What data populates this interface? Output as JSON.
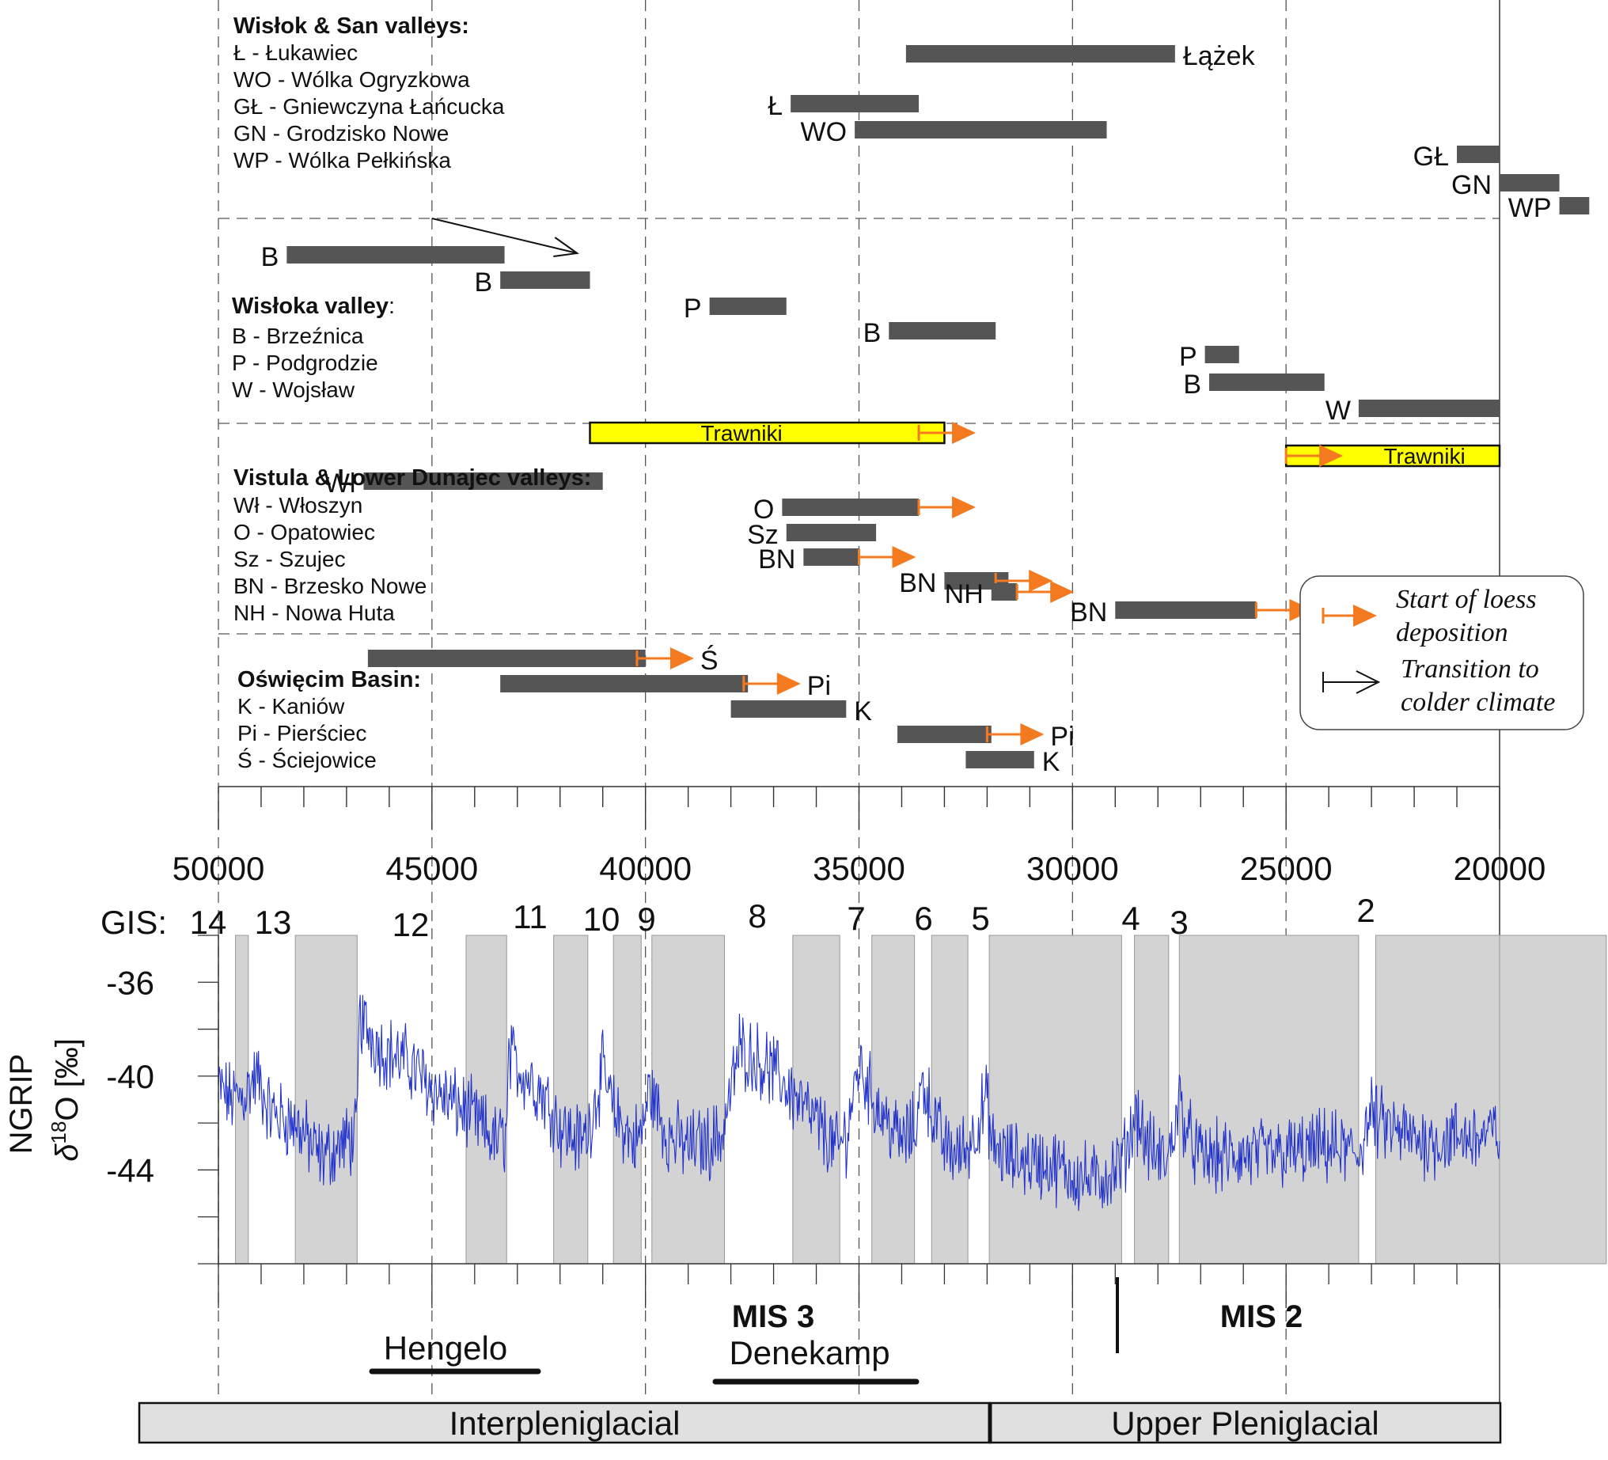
{
  "chart_data": [
    {
      "type": "range_bars",
      "x_axis": {
        "range": [
          50000,
          20000
        ],
        "major_ticks": [
          50000,
          45000,
          40000,
          35000,
          30000,
          25000,
          20000
        ],
        "major_tick_labels": [
          "50000",
          "45000",
          "40000",
          "35000",
          "30000",
          "25000",
          "20000"
        ],
        "minor_step": 1000,
        "units": "years",
        "reversed": true
      },
      "grid": "dashed vertical at 5000-year intervals, dashed horizontal panel dividers",
      "panels": [
        {
          "title": "Wisłok & San valleys:",
          "key": [
            "Ł - Łukawiec",
            "WO - Wólka Ogryzkowa",
            "GŁ - Gniewczyna Łańcucka",
            "GN - Grodzisko Nowe",
            "WP - Wólka Pełkińska"
          ],
          "bars": [
            {
              "label": "Łążek",
              "from": 33900,
              "to": 27600,
              "label_side": "right"
            },
            {
              "label": "Ł",
              "from": 36600,
              "to": 33600,
              "label_side": "left"
            },
            {
              "label": "WO",
              "from": 35100,
              "to": 29200,
              "label_side": "left"
            },
            {
              "label": "GŁ",
              "from": 21000,
              "to": 20000,
              "label_side": "left"
            },
            {
              "label": "GN",
              "from": 20000,
              "to": 18600,
              "label_side": "left"
            },
            {
              "label": "WP",
              "from": 18600,
              "to": 17900,
              "label_side": "left"
            }
          ]
        },
        {
          "title": "Wisłoka valley",
          "title_suffix": ":",
          "key": [
            "B - Brzeźnica",
            "P - Podgrodzie",
            "W - Wojsław"
          ],
          "bars": [
            {
              "label": "B",
              "from": 48400,
              "to": 43300,
              "label_side": "left"
            },
            {
              "label": "B",
              "from": 43400,
              "to": 41300,
              "label_side": "left"
            },
            {
              "label": "P",
              "from": 38500,
              "to": 36700,
              "label_side": "left"
            },
            {
              "label": "B",
              "from": 34300,
              "to": 31800,
              "label_side": "left"
            },
            {
              "label": "P",
              "from": 26900,
              "to": 26100,
              "label_side": "left"
            },
            {
              "label": "B",
              "from": 26800,
              "to": 24100,
              "label_side": "left"
            },
            {
              "label": "W",
              "from": 23300,
              "to": 20000,
              "label_side": "left"
            }
          ],
          "arrows": [
            {
              "type": "transition",
              "from": 45000,
              "to": 41600
            }
          ]
        },
        {
          "title": "Vistula & Lower Dunajec valleys:",
          "key": [
            "Wł - Włoszyn",
            "O - Opatowiec",
            "Sz - Szujec",
            "BN - Brzesko Nowe",
            "NH - Nowa Huta"
          ],
          "bars": [
            {
              "label": "Trawniki",
              "from": 41300,
              "to": 33000,
              "highlight": true,
              "loess_start": 33600
            },
            {
              "label": "Trawniki",
              "from": 25000,
              "to": 20000,
              "highlight": true,
              "loess_start": 25000
            },
            {
              "label": "Wł",
              "from": 46600,
              "to": 41000,
              "label_side": "left"
            },
            {
              "label": "O",
              "from": 36800,
              "to": 33600,
              "label_side": "left",
              "loess_start": 33600
            },
            {
              "label": "Sz",
              "from": 36700,
              "to": 34600,
              "label_side": "left"
            },
            {
              "label": "BN",
              "from": 36300,
              "to": 35000,
              "label_side": "left",
              "loess_start": 35000
            },
            {
              "label": "BN",
              "from": 33000,
              "to": 31500,
              "label_side": "left",
              "loess_start": 31800
            },
            {
              "label": "NH",
              "from": 31900,
              "to": 31300,
              "label_side": "left",
              "loess_start": 31300
            },
            {
              "label": "BN",
              "from": 29000,
              "to": 25700,
              "label_side": "left",
              "loess_start": 25700
            }
          ]
        },
        {
          "title": "Oświęcim Basin:",
          "key": [
            "K - Kaniów",
            "Pi - Pierściec",
            "Ś - Ściejowice"
          ],
          "bars": [
            {
              "label": "Ś",
              "from": 46500,
              "to": 40000,
              "label_side": "right",
              "loess_start": 40200
            },
            {
              "label": "Pi",
              "from": 43400,
              "to": 37600,
              "label_side": "right",
              "loess_start": 37700
            },
            {
              "label": "K",
              "from": 38000,
              "to": 35300,
              "label_side": "right"
            },
            {
              "label": "Pi",
              "from": 34100,
              "to": 31900,
              "label_side": "right",
              "loess_start": 32000
            },
            {
              "label": "K",
              "from": 32500,
              "to": 30900,
              "label_side": "right"
            }
          ]
        }
      ],
      "legend": {
        "placement": "right",
        "items": [
          {
            "symbol": "orange-arrow",
            "label_lines": [
              "Start of loess",
              "deposition"
            ]
          },
          {
            "symbol": "black-arrow",
            "label_lines": [
              "Transition to",
              "colder climate"
            ]
          }
        ]
      }
    },
    {
      "type": "line",
      "ylabel_lines": [
        "NGRIP",
        "δ¹⁸O [‰]"
      ],
      "ylabel_parts": {
        "line1": "NGRIP",
        "delta": "δ",
        "superscript": "18",
        "rest": "O [‰]"
      },
      "y_ticks": [
        -36,
        -40,
        -44
      ],
      "y_tick_labels": [
        "-36",
        "-40",
        "-44"
      ],
      "ylim": [
        -34,
        -48
      ],
      "y_reversed": true,
      "xlim": [
        50000,
        20000
      ],
      "series_color": "#2233cc",
      "gis_label": "GIS:",
      "gis_events": [
        {
          "label": "14",
          "from": 49600,
          "to": 49300
        },
        {
          "label": "13",
          "from": 48200,
          "to": 46750
        },
        {
          "label": "12",
          "from": 44200,
          "to": 43250
        },
        {
          "label": "11",
          "from": 42150,
          "to": 41350
        },
        {
          "label": "10",
          "from": 40750,
          "to": 40100
        },
        {
          "label": "9",
          "from": 39850,
          "to": 38150
        },
        {
          "label": "8",
          "from": 36550,
          "to": 35450
        },
        {
          "label": "7",
          "from": 34700,
          "to": 33700
        },
        {
          "label": "6",
          "from": 33300,
          "to": 32450
        },
        {
          "label": "5",
          "from": 31950,
          "to": 28850
        },
        {
          "label": "4",
          "from": 28550,
          "to": 27750
        },
        {
          "label": "3",
          "from": 27500,
          "to": 23300
        },
        {
          "label": "2",
          "from": 22900,
          "to": 17500
        }
      ],
      "signal_anchors": {
        "x": [
          50000,
          49700,
          49400,
          49100,
          48800,
          48500,
          48200,
          47600,
          47000,
          46760,
          46700,
          46200,
          45500,
          45000,
          44500,
          44200,
          43500,
          43250,
          43200,
          42500,
          42150,
          42000,
          41500,
          41350,
          41000,
          40750,
          40300,
          40100,
          39900,
          39500,
          39000,
          38500,
          38200,
          38150,
          37800,
          37200,
          36800,
          36550,
          36000,
          35500,
          35450,
          35300,
          35000,
          34700,
          34500,
          34000,
          33700,
          33500,
          33300,
          33000,
          32700,
          32450,
          32000,
          31900,
          31500,
          31000,
          30500,
          30000,
          29500,
          29000,
          28800,
          28500,
          28300,
          28000,
          27750,
          27500,
          27300,
          27000,
          26500,
          26000,
          25500,
          25000,
          24500,
          24000,
          23500,
          23300,
          23000,
          22900,
          22500,
          22000,
          21500,
          21000,
          20500,
          20000
        ],
        "y": [
          -40.5,
          -41.0,
          -40.8,
          -40.0,
          -41.5,
          -41.8,
          -42.0,
          -43.5,
          -42.8,
          -42.5,
          -37.5,
          -38.8,
          -39.5,
          -40.5,
          -41.2,
          -41.5,
          -42.8,
          -42.5,
          -39.2,
          -40.5,
          -41.5,
          -42.2,
          -42.8,
          -42.3,
          -39.8,
          -41.5,
          -42.8,
          -42.5,
          -40.5,
          -42.5,
          -43.0,
          -42.8,
          -42.5,
          -42.0,
          -38.8,
          -39.5,
          -40.2,
          -40.8,
          -42.0,
          -43.2,
          -43.0,
          -42.5,
          -39.5,
          -40.8,
          -41.5,
          -42.8,
          -42.3,
          -40.2,
          -41.5,
          -43.0,
          -43.3,
          -43.0,
          -41.0,
          -43.0,
          -43.5,
          -43.6,
          -43.8,
          -44.2,
          -44.5,
          -44.0,
          -43.5,
          -41.5,
          -42.8,
          -43.5,
          -43.5,
          -41.0,
          -42.5,
          -43.5,
          -43.5,
          -43.4,
          -43.4,
          -43.3,
          -43.2,
          -43.0,
          -43.3,
          -43.3,
          -41.5,
          -42.0,
          -42.3,
          -42.7,
          -42.8,
          -42.6,
          -42.6,
          -42.4
        ]
      }
    },
    {
      "type": "annotations",
      "mis": [
        {
          "label": "MIS 3",
          "position": 35500
        },
        {
          "label": "MIS 2",
          "position": 24400
        }
      ],
      "mis_boundary": 29000,
      "interstadials": [
        {
          "label": "Hengelo",
          "from": 46400,
          "to": 42400
        },
        {
          "label": "Denekamp",
          "from": 38200,
          "to": 33500
        }
      ],
      "periods": [
        {
          "label": "Interpleniglacial",
          "from": 51800,
          "to": 32000
        },
        {
          "label": "Upper Pleniglacial",
          "from": 32000,
          "to": 20000
        }
      ]
    }
  ]
}
